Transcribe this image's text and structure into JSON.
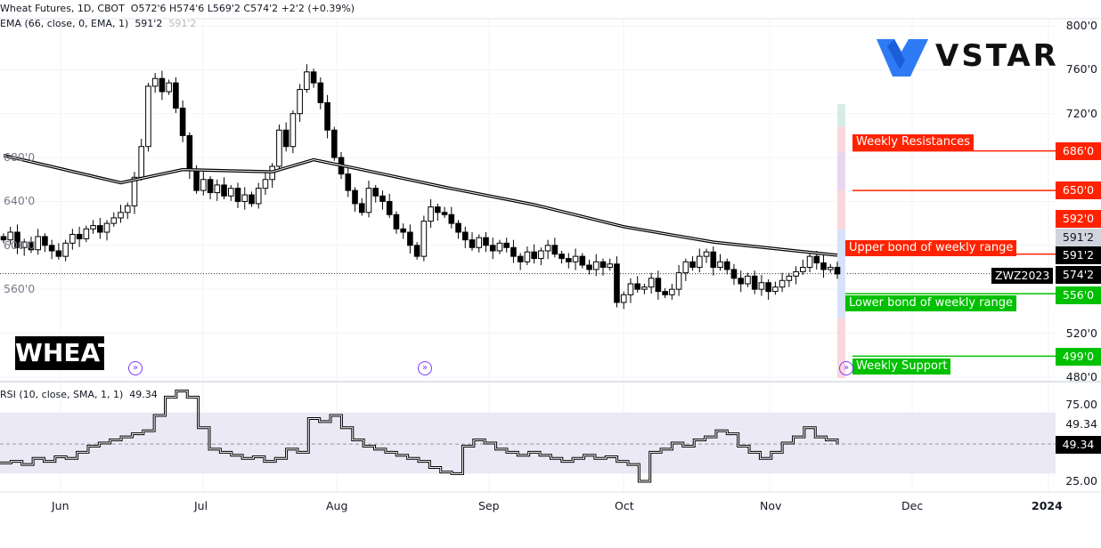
{
  "legend": {
    "symbol": "Wheat Futures, 1D, CBOT",
    "ohlc": "O572'6  H574'6  L569'2  C574'2  +2'2 (+0.39%)",
    "ema_title": "EMA (66, close, 0, EMA, 1)",
    "ema_value": "591'2",
    "ema_value_faded": "591'2",
    "rsi_title": "RSI (10, close, SMA, 1, 1)",
    "rsi_value": "49.34"
  },
  "logo": {
    "text": "VSTAR",
    "color": "#2f7bf5"
  },
  "watermark": "WHEAT",
  "annotations": {
    "weekly_resistances": "Weekly Resistances",
    "upper": "Upper bond of weekly range",
    "lower": "Lower bond of weekly range",
    "support": "Weekly Support",
    "ticker": "ZWZ2023"
  },
  "price_labels": {
    "r1": "686'0",
    "r2": "650'0",
    "r3": "592'0",
    "ema_grey": "591'2",
    "ema": "591'2",
    "last": "574'2",
    "s1": "556'0",
    "s2": "499'0",
    "rsi_last": "49.34",
    "rsi_ref": "49.34"
  },
  "colors": {
    "resistance": "#ff2200",
    "support": "#00c000",
    "candle": "#000000",
    "rsi_band": "#ece9f6"
  },
  "chart_data": [
    {
      "type": "candlestick",
      "title": "Wheat Futures, 1D, CBOT",
      "ylim": [
        480,
        800
      ],
      "yticks": [
        "800'0",
        "760'0",
        "720'0",
        "680'0",
        "640'0",
        "600'0",
        "560'0",
        "520'0",
        "480'0"
      ],
      "ytick_values": [
        800,
        760,
        720,
        680,
        640,
        600,
        560,
        520,
        480
      ],
      "xticks": [
        "Jun",
        "Jul",
        "Aug",
        "Sep",
        "Oct",
        "Nov",
        "Dec",
        "2024"
      ],
      "close": [
        605,
        612,
        598,
        603,
        596,
        608,
        600,
        595,
        590,
        602,
        610,
        606,
        615,
        618,
        612,
        620,
        625,
        630,
        636,
        662,
        690,
        745,
        752,
        740,
        748,
        725,
        700,
        668,
        650,
        660,
        648,
        655,
        645,
        652,
        640,
        646,
        638,
        652,
        660,
        672,
        705,
        690,
        720,
        742,
        758,
        748,
        730,
        705,
        680,
        665,
        650,
        638,
        630,
        652,
        645,
        640,
        628,
        615,
        612,
        600,
        590,
        622,
        635,
        630,
        628,
        620,
        612,
        605,
        598,
        607,
        600,
        595,
        602,
        598,
        590,
        585,
        594,
        588,
        595,
        600,
        592,
        588,
        585,
        590,
        582,
        578,
        585,
        580,
        583,
        548,
        555,
        565,
        560,
        562,
        570,
        558,
        555,
        560,
        575,
        585,
        580,
        590,
        594,
        580,
        585,
        578,
        570,
        565,
        572,
        560,
        566,
        558,
        562,
        568,
        572,
        576,
        580,
        590,
        584,
        578,
        580,
        574
      ],
      "ema": {
        "name": "EMA 66",
        "points": [
          [
            0,
            682
          ],
          [
            17,
            657
          ],
          [
            26,
            669
          ],
          [
            39,
            667
          ],
          [
            45,
            678
          ],
          [
            52,
            669
          ],
          [
            64,
            653
          ],
          [
            77,
            637
          ],
          [
            90,
            617
          ],
          [
            103,
            603
          ],
          [
            121,
            591
          ]
        ]
      },
      "levels": [
        {
          "name": "Weekly Resistance",
          "value": 686
        },
        {
          "name": "Weekly Resistance",
          "value": 650
        },
        {
          "name": "Upper bond of weekly range",
          "value": 592
        },
        {
          "name": "Lower bond of weekly range",
          "value": 556
        },
        {
          "name": "Weekly Support",
          "value": 499
        }
      ],
      "last_price": 574.25
    },
    {
      "type": "line",
      "title": "RSI (10, close, SMA, 1, 1)",
      "ylim": [
        20,
        85
      ],
      "yticks": [
        "75.00",
        "25.00"
      ],
      "band": [
        30,
        70
      ],
      "values": [
        37,
        38,
        36,
        40,
        38,
        41,
        40,
        44,
        48,
        50,
        52,
        54,
        56,
        58,
        68,
        80,
        84,
        80,
        60,
        46,
        44,
        42,
        40,
        41,
        38,
        40,
        46,
        44,
        66,
        64,
        68,
        60,
        52,
        48,
        46,
        44,
        42,
        40,
        38,
        34,
        31,
        30,
        48,
        52,
        50,
        46,
        44,
        42,
        44,
        42,
        40,
        38,
        40,
        42,
        40,
        41,
        38,
        36,
        25,
        44,
        46,
        50,
        48,
        52,
        54,
        58,
        56,
        48,
        44,
        40,
        44,
        50,
        54,
        60,
        54,
        52,
        49
      ]
    }
  ]
}
